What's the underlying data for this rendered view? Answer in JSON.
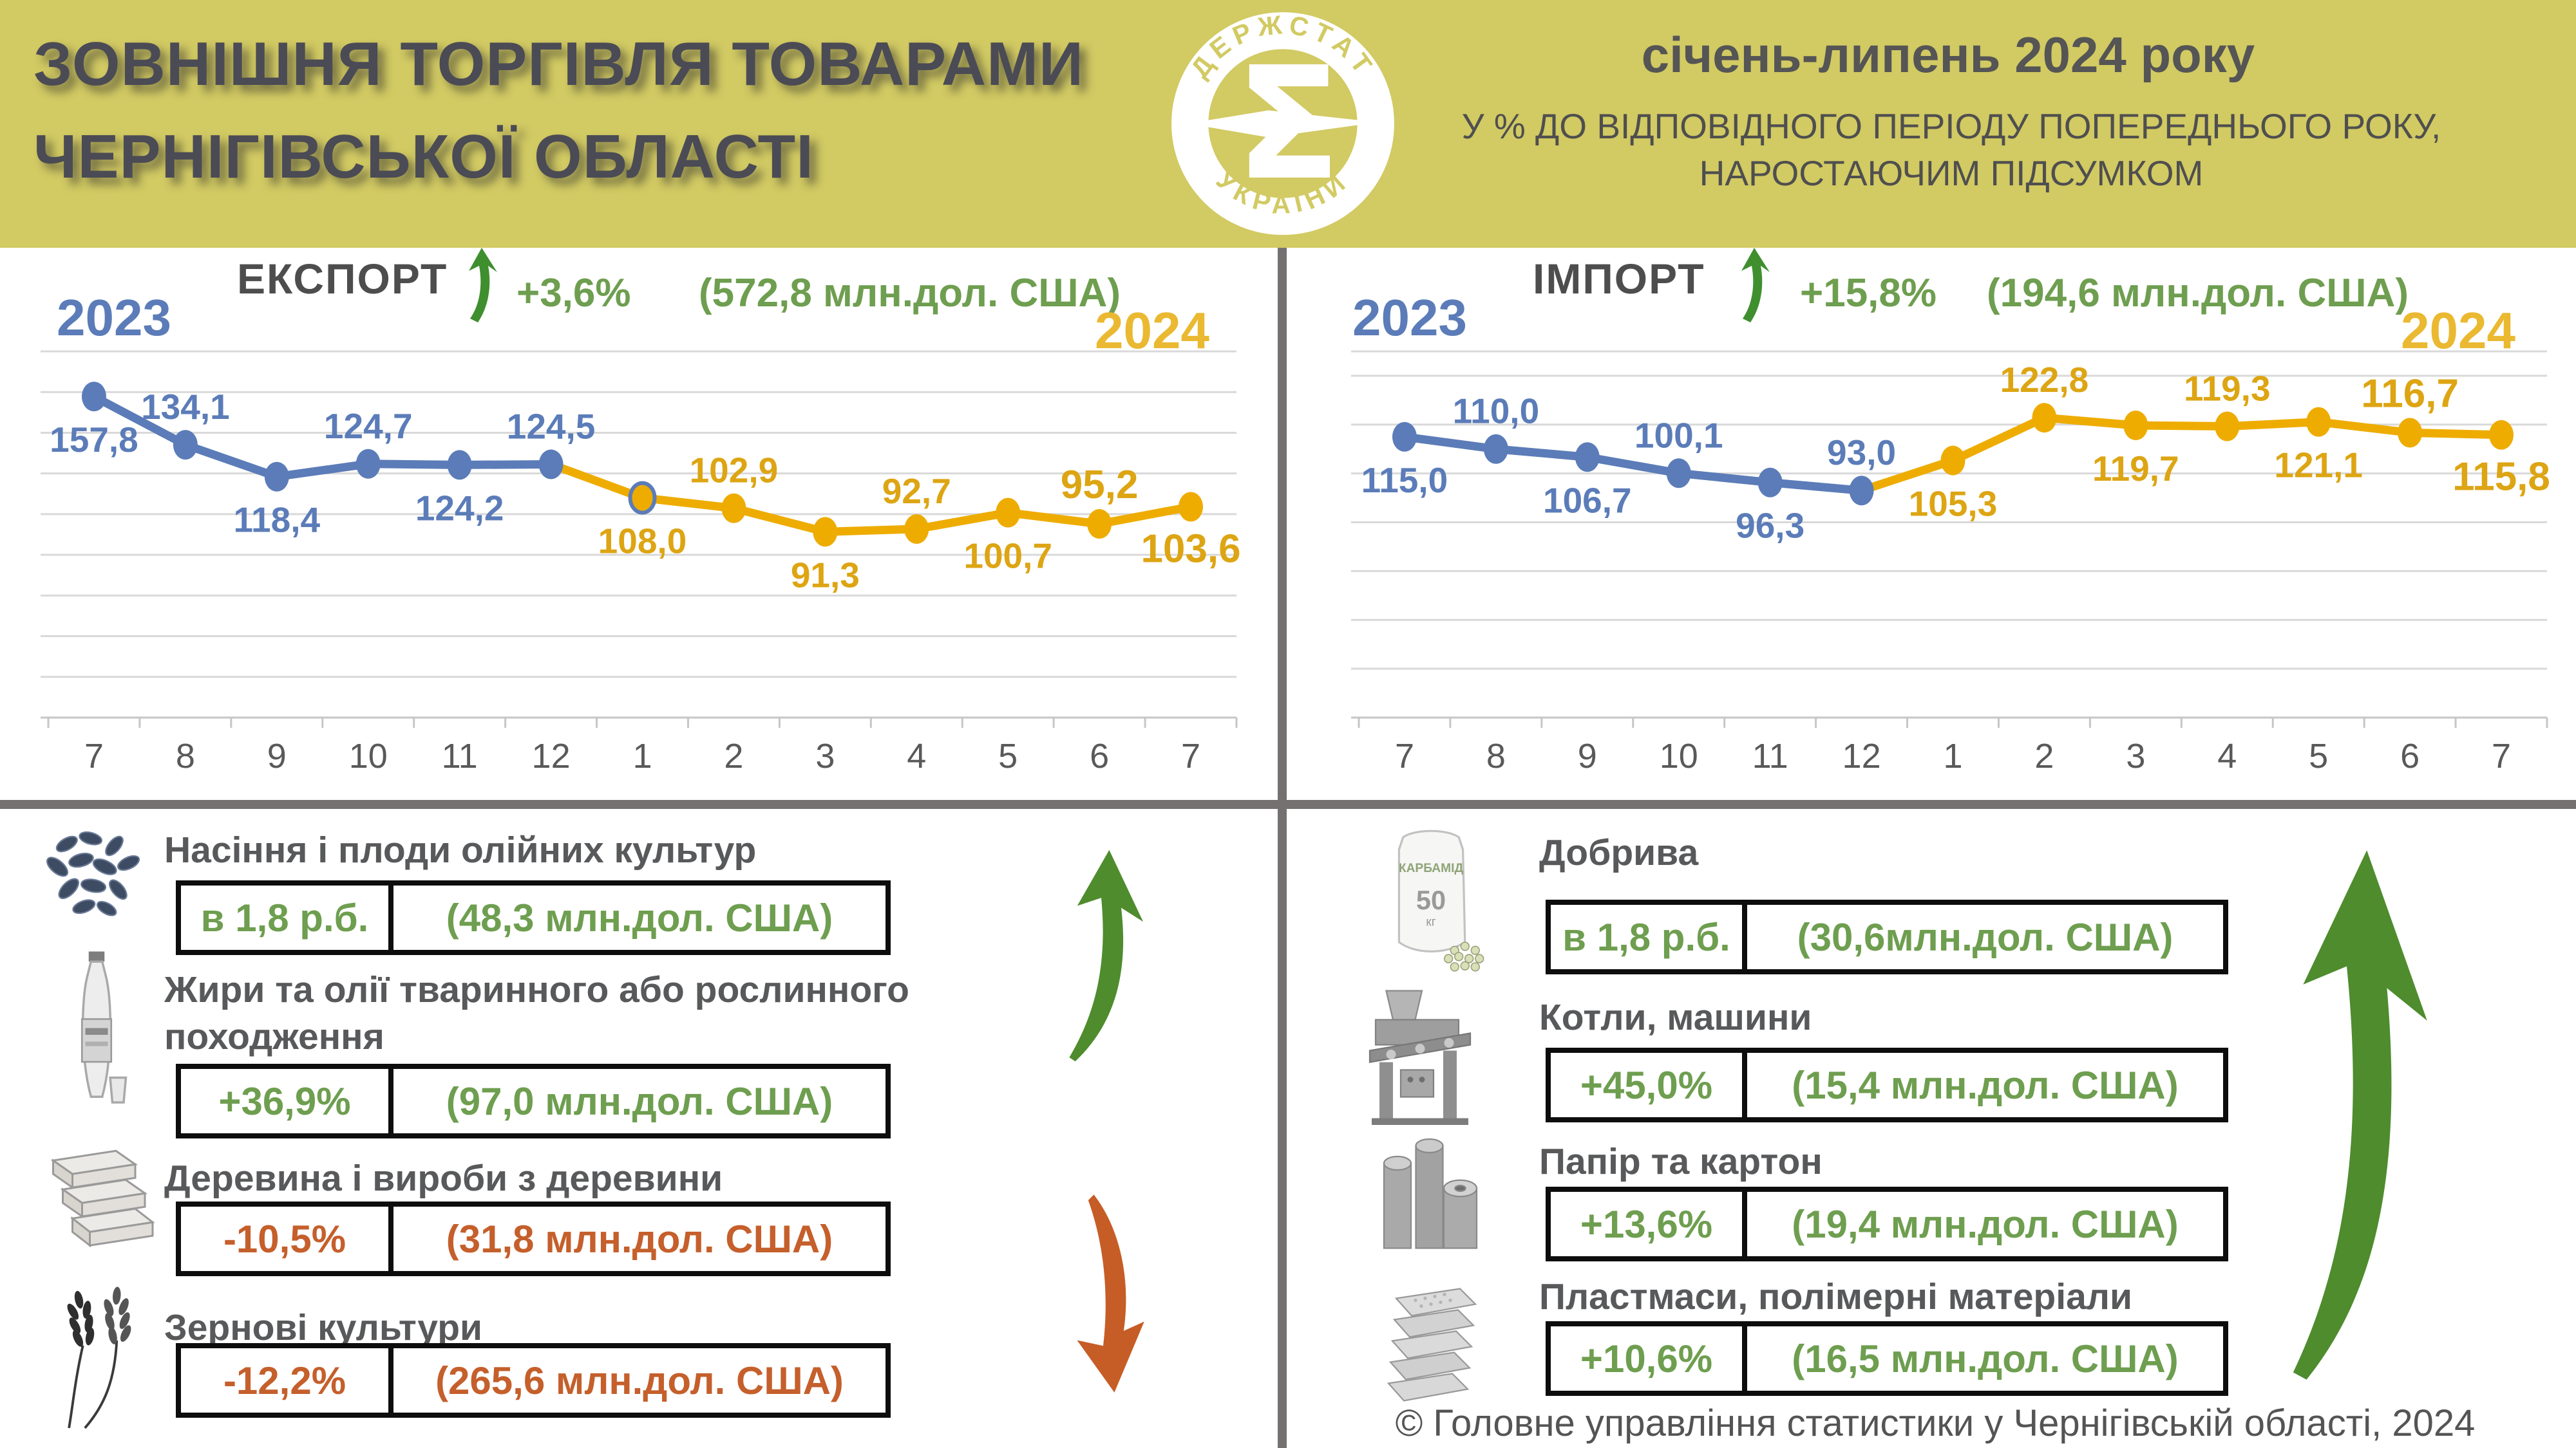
{
  "header": {
    "title_line1": "ЗОВНІШНЯ ТОРГІВЛЯ ТОВАРАМИ",
    "title_line2": "ЧЕРНІГІВСЬКОЇ ОБЛАСТІ",
    "period_title": "січень-липень 2024 року",
    "period_sub1": "У % ДО ВІДПОВІДНОГО ПЕРІОДУ ПОПЕРЕДНЬОГО РОКУ,",
    "period_sub2": "НАРОСТАЮЧИМ ПІДСУМКОМ",
    "logo_text_top": "ДЕРЖСТАТ",
    "logo_text_bottom": "УКРАЇНИ",
    "logo_sigma": "Σ"
  },
  "colors": {
    "header_bg": "#d2ca63",
    "blue_2023": "#5b7cb8",
    "gold_2024": "#eeac00",
    "gold_label": "#dda513",
    "green": "#6e9e4f",
    "green_arrow": "#4e8c2d",
    "orange": "#c55f2b",
    "divider": "#767171",
    "gridline": "#d9d9d9"
  },
  "chart_data": [
    {
      "type": "line",
      "panel": "export",
      "title": "ЕКСПОРТ",
      "change": "+3,6%",
      "total": "(572,8 млн.дол. США)",
      "year_left": "2023",
      "year_right": "2024",
      "x": [
        "7",
        "8",
        "9",
        "10",
        "11",
        "12",
        "1",
        "2",
        "3",
        "4",
        "5",
        "6",
        "7"
      ],
      "ylim": [
        0,
        180
      ],
      "grid": true,
      "legend_position": "none",
      "series": [
        {
          "name": "2023",
          "color": "#5b7cb8",
          "label_color": "#5b7cb8",
          "slots": [
            0,
            1,
            2,
            3,
            4,
            5
          ],
          "values": [
            157.8,
            134.1,
            118.4,
            124.7,
            124.2,
            124.5
          ],
          "labels": [
            "157,8",
            "134,1",
            "118,4",
            "124,7",
            "124,2",
            "124,5"
          ],
          "label_side": [
            "below",
            "above",
            "below",
            "above",
            "below",
            "above"
          ],
          "label_bold": [
            false,
            false,
            false,
            false,
            false,
            false
          ]
        },
        {
          "name": "2024",
          "color": "#eeac00",
          "label_color": "#dda513",
          "slots": [
            6,
            7,
            8,
            9,
            10,
            11,
            12
          ],
          "values": [
            108.0,
            102.9,
            91.3,
            92.7,
            100.7,
            95.2,
            103.6
          ],
          "labels": [
            "108,0",
            "102,9",
            "91,3",
            "92,7",
            "100,7",
            "95,2",
            "103,6"
          ],
          "label_side": [
            "below",
            "above",
            "below",
            "above",
            "below",
            "above",
            "below"
          ],
          "label_bold": [
            false,
            false,
            false,
            false,
            false,
            true,
            true
          ],
          "first_marker_ring": true
        }
      ]
    },
    {
      "type": "line",
      "panel": "import",
      "title": "ІМПОРТ",
      "change": "+15,8%",
      "total": "(194,6 млн.дол. США)",
      "year_left": "2023",
      "year_right": "2024",
      "x": [
        "7",
        "8",
        "9",
        "10",
        "11",
        "12",
        "1",
        "2",
        "3",
        "4",
        "5",
        "6",
        "7"
      ],
      "ylim": [
        0,
        150
      ],
      "grid": true,
      "legend_position": "none",
      "series": [
        {
          "name": "2023",
          "color": "#5b7cb8",
          "label_color": "#5b7cb8",
          "slots": [
            0,
            1,
            2,
            3,
            4,
            5
          ],
          "values": [
            115.0,
            110.0,
            106.7,
            100.1,
            96.3,
            93.0
          ],
          "labels": [
            "115,0",
            "110,0",
            "106,7",
            "100,1",
            "96,3",
            "93,0"
          ],
          "label_side": [
            "below",
            "above",
            "below",
            "above",
            "below",
            "above"
          ],
          "label_bold": [
            false,
            false,
            false,
            false,
            false,
            false
          ]
        },
        {
          "name": "2024",
          "color": "#eeac00",
          "label_color": "#dda513",
          "slots": [
            6,
            7,
            8,
            9,
            10,
            11,
            12
          ],
          "values": [
            105.3,
            122.8,
            119.7,
            119.3,
            121.1,
            116.7,
            115.8
          ],
          "labels": [
            "105,3",
            "122,8",
            "119,7",
            "119,3",
            "121,1",
            "116,7",
            "115,8"
          ],
          "label_side": [
            "below",
            "above",
            "below",
            "above",
            "below",
            "above",
            "below"
          ],
          "label_bold": [
            false,
            false,
            false,
            false,
            false,
            true,
            true
          ],
          "first_marker_ring": false
        }
      ]
    }
  ],
  "export_goods": {
    "items": [
      {
        "icon": "sunflower-seeds",
        "title": "Насіння і плоди олійних культур",
        "title2": "",
        "change": "в 1,8 р.б.",
        "amount": "(48,3 млн.дол. США)",
        "trend": "up"
      },
      {
        "icon": "oil-bottle",
        "title": "Жири та олії тваринного або рослинного",
        "title2": "походження",
        "change": "+36,9%",
        "amount": "(97,0 млн.дол. США)",
        "trend": "up"
      },
      {
        "icon": "wood-planks",
        "title": "Деревина і вироби з деревини",
        "title2": "",
        "change": "-10,5%",
        "amount": "(31,8 млн.дол. США)",
        "trend": "down"
      },
      {
        "icon": "wheat",
        "title": "Зернові культури",
        "title2": "",
        "change": "-12,2%",
        "amount": "(265,6 млн.дол. США)",
        "trend": "down"
      }
    ]
  },
  "import_goods": {
    "items": [
      {
        "icon": "fertilizer-bag",
        "title": "Добрива",
        "title2": "",
        "change": "в 1,8 р.б.",
        "amount": "(30,6млн.дол. США)",
        "trend": "up"
      },
      {
        "icon": "boiler-machine",
        "title": "Котли, машини",
        "title2": "",
        "change": "+45,0%",
        "amount": "(15,4 млн.дол. США)",
        "trend": "up"
      },
      {
        "icon": "paper-rolls",
        "title": "Папір та картон",
        "title2": "",
        "change": "+13,6%",
        "amount": "(19,4 млн.дол. США)",
        "trend": "up"
      },
      {
        "icon": "plastic-sheets",
        "title": "Пластмаси, полімерні матеріали",
        "title2": "",
        "change": "+10,6%",
        "amount": "(16,5 млн.дол. США)",
        "trend": "up"
      }
    ]
  },
  "fertilizer_bag_label": {
    "line1": "КАРБАМІД",
    "line2": "50",
    "line3": "кг"
  },
  "footer": {
    "copyright": "© Головне управління статистики у Чернігівській області, 2024"
  }
}
